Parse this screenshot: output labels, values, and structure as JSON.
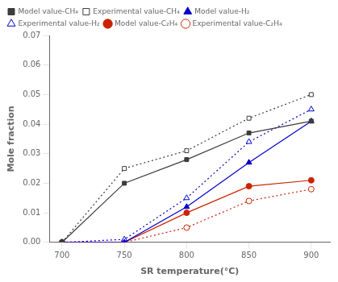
{
  "chart_data": {
    "type": "line",
    "x": [
      700,
      750,
      800,
      850,
      900
    ],
    "series": [
      {
        "name": "Model value-CH₄",
        "color": "#3c3c3c",
        "marker": "square",
        "line_style": "solid",
        "values": [
          0.0,
          0.02,
          0.028,
          0.037,
          0.041
        ]
      },
      {
        "name": "Experimental value-CH₄",
        "color": "#3c3c3c",
        "marker": "open square",
        "line_style": "dotted",
        "values": [
          0.0,
          0.025,
          0.031,
          0.042,
          0.05
        ]
      },
      {
        "name": "Model value-H₂",
        "color": "#0000cc",
        "marker": "triangle",
        "line_style": "solid",
        "values": [
          0.0,
          0.0,
          0.012,
          0.027,
          0.041
        ]
      },
      {
        "name": "Experimental value-H₂",
        "color": "#0000cc",
        "marker": "open triangle",
        "line_style": "dotted",
        "values": [
          0.0,
          0.001,
          0.015,
          0.034,
          0.045
        ]
      },
      {
        "name": "Model value-C₂H₄",
        "color": "#cc2200",
        "marker": "circle",
        "line_style": "solid",
        "values": [
          0.0,
          0.0,
          0.01,
          0.019,
          0.021
        ]
      },
      {
        "name": "Experimental value-C₂H₄",
        "color": "#cc2200",
        "marker": "open circle",
        "line_style": "dotted",
        "values": [
          0.0,
          0.0,
          0.005,
          0.014,
          0.018
        ]
      }
    ],
    "xlabel": "SR temperature(°C)",
    "ylabel": "Mole fraction",
    "xlim": [
      690,
      915
    ],
    "xticks": [
      700,
      750,
      800,
      850,
      900
    ],
    "ylim": [
      0,
      0.07
    ],
    "yticks": [
      {
        "value": 0,
        "label": "0.00"
      },
      0.01,
      0.02,
      0.03,
      0.04,
      0.05,
      0.06,
      0.07
    ],
    "grid": false,
    "legend": "upper left"
  }
}
